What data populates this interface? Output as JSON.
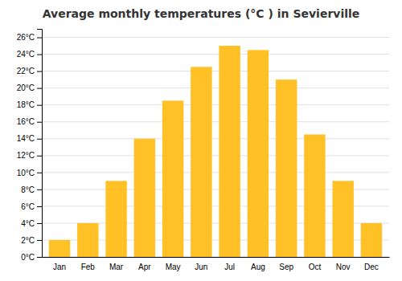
{
  "chart_data": {
    "type": "bar",
    "title": "Average monthly temperatures (°C ) in Sevierville",
    "categories": [
      "Jan",
      "Feb",
      "Mar",
      "Apr",
      "May",
      "Jun",
      "Jul",
      "Aug",
      "Sep",
      "Oct",
      "Nov",
      "Dec"
    ],
    "values": [
      2,
      4,
      9,
      14,
      18.5,
      22.5,
      25,
      24.5,
      21,
      14.5,
      9,
      4
    ],
    "color": "#FFC125",
    "ylim": [
      0,
      27
    ],
    "yticks": [
      {
        "value": 0,
        "label": "0°C"
      },
      {
        "value": 2,
        "label": "2°C"
      },
      {
        "value": 4,
        "label": "4°C"
      },
      {
        "value": 6,
        "label": "6°C"
      },
      {
        "value": 8,
        "label": "8°C"
      },
      {
        "value": 10,
        "label": "10°C"
      },
      {
        "value": 12,
        "label": "12°C"
      },
      {
        "value": 14,
        "label": "14°C"
      },
      {
        "value": 16,
        "label": "16°C"
      },
      {
        "value": 18,
        "label": "18°C"
      },
      {
        "value": 20,
        "label": "20°C"
      },
      {
        "value": 22,
        "label": "22°C"
      },
      {
        "value": 24,
        "label": "24°C"
      },
      {
        "value": 26,
        "label": "26°C"
      }
    ],
    "grid": true
  }
}
